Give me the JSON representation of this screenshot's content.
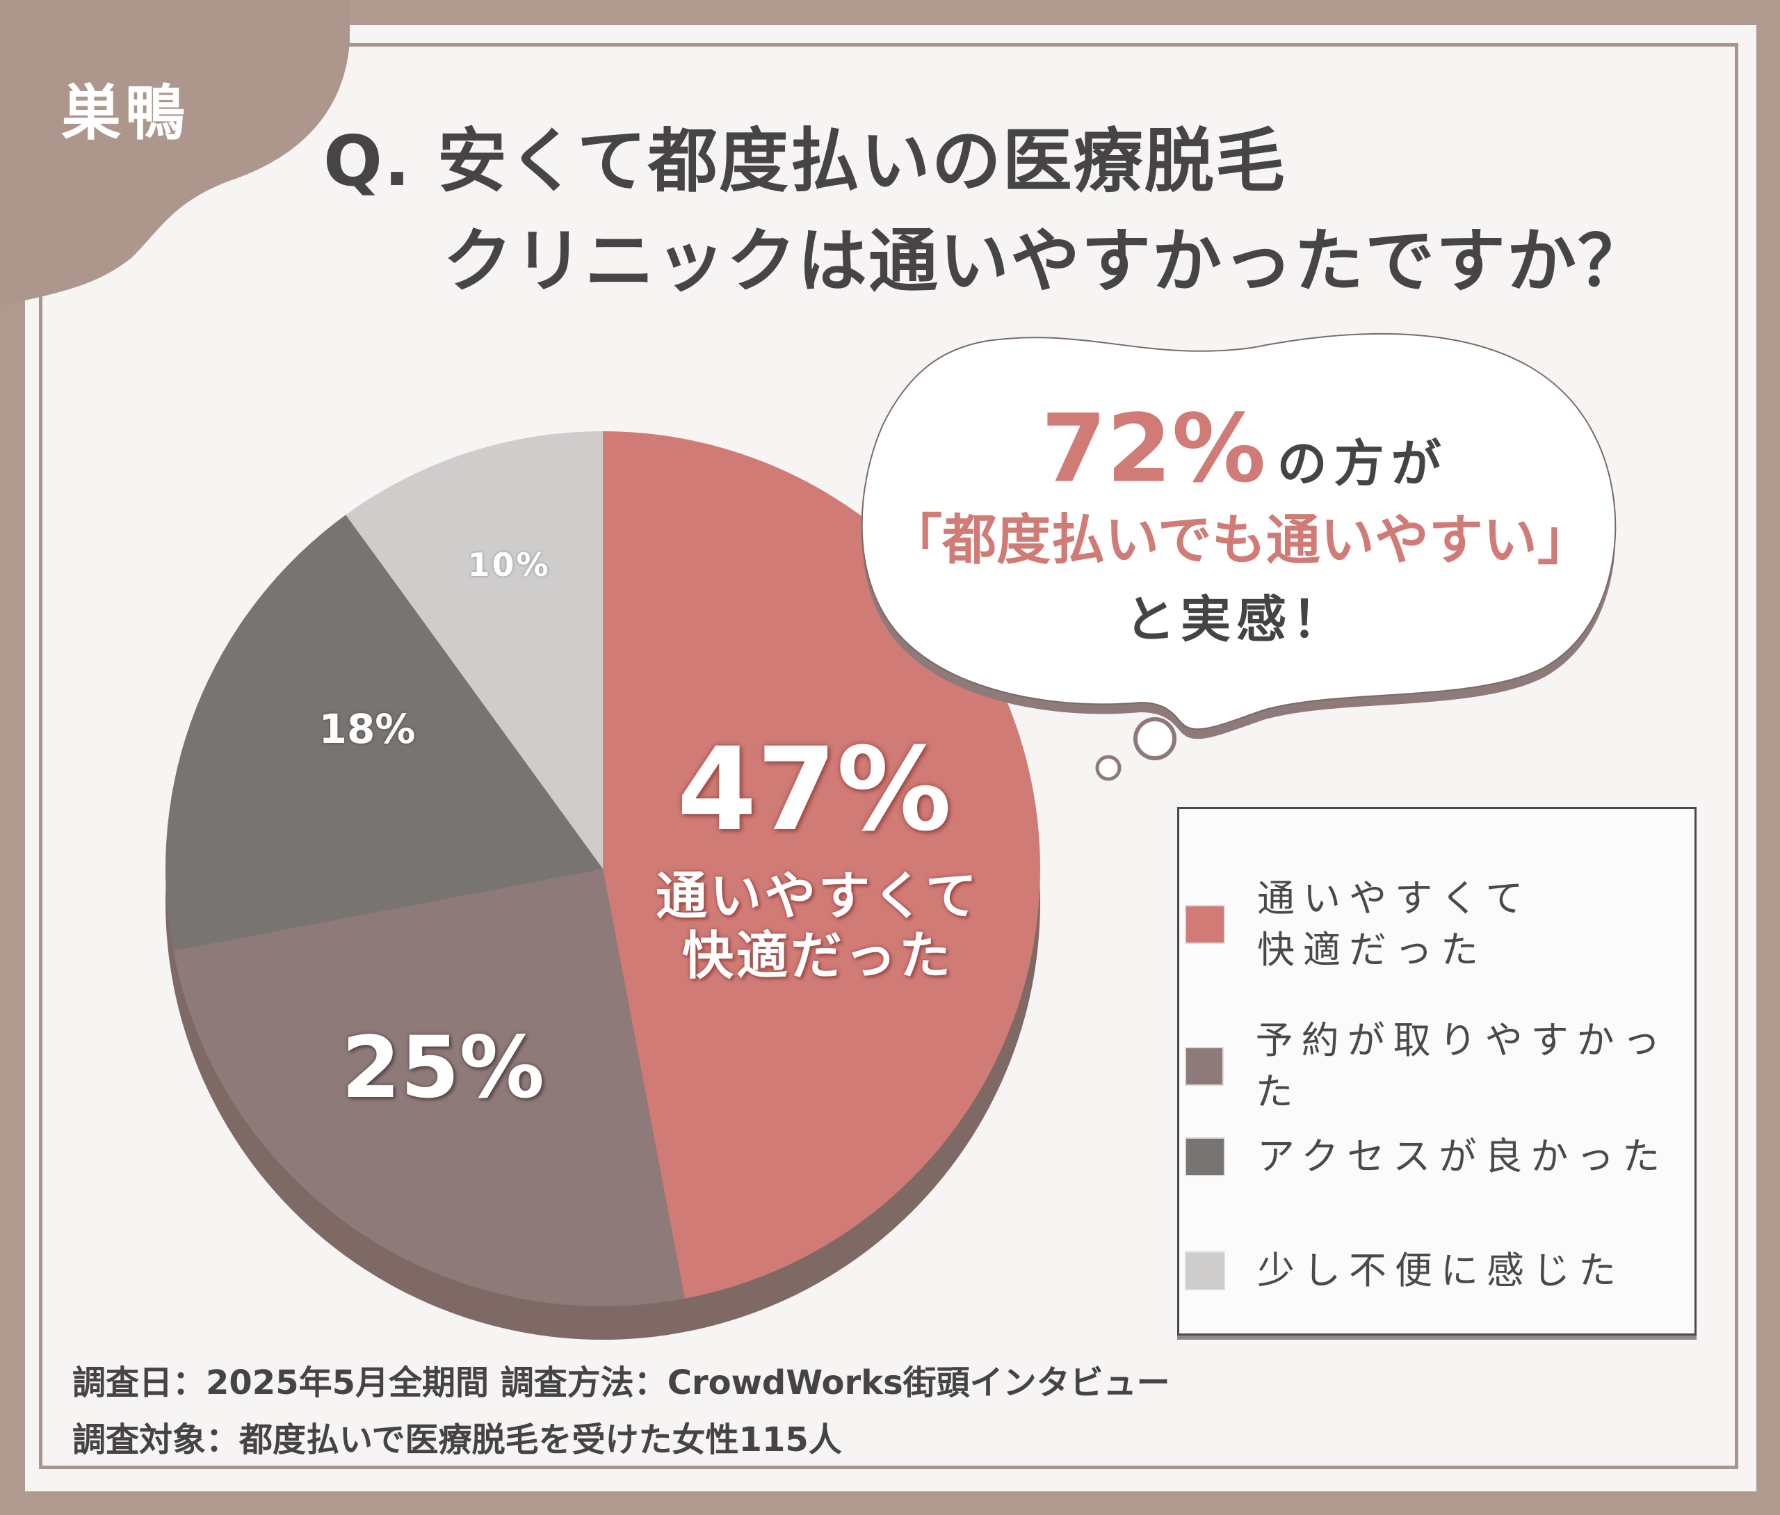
{
  "logo": "巣鴨",
  "title": {
    "line1": "Q. 安くて都度払いの医療脱毛",
    "line2": "クリニックは通いやすかったですか？"
  },
  "callout": {
    "percent": "72%",
    "suffix": "の方が",
    "quote": "「都度払いでも通いやすい」",
    "tail": "と実感！",
    "accent": "#d07b76"
  },
  "chart_data": {
    "type": "pie",
    "start": "top",
    "direction": "clockwise",
    "legend_position": "right",
    "slices": [
      {
        "name": "通いやすくて快適だった",
        "value": 47,
        "label": "47%",
        "sublabel": [
          "通いやすくて",
          "快適だった"
        ],
        "color": "#d07b76"
      },
      {
        "name": "予約が取りやすかった",
        "value": 25,
        "label": "25%",
        "color": "#8d7a79"
      },
      {
        "name": "アクセスが良かった",
        "value": 18,
        "label": "18%",
        "color": "#787471"
      },
      {
        "name": "少し不便に感じた",
        "value": 10,
        "label": "10%",
        "color": "#cfcdcc"
      }
    ],
    "legend": [
      [
        "通いやすくて",
        "快適だった"
      ],
      [
        "予約が取りやすかった"
      ],
      [
        "アクセスが良かった"
      ],
      [
        "少し不便に感じた"
      ]
    ]
  },
  "footer": {
    "line1": "調査日：2025年5月全期間  調査方法：CrowdWorks街頭インタビュー",
    "line2": "調査対象：都度払いで医療脱毛を受けた女性115人"
  }
}
